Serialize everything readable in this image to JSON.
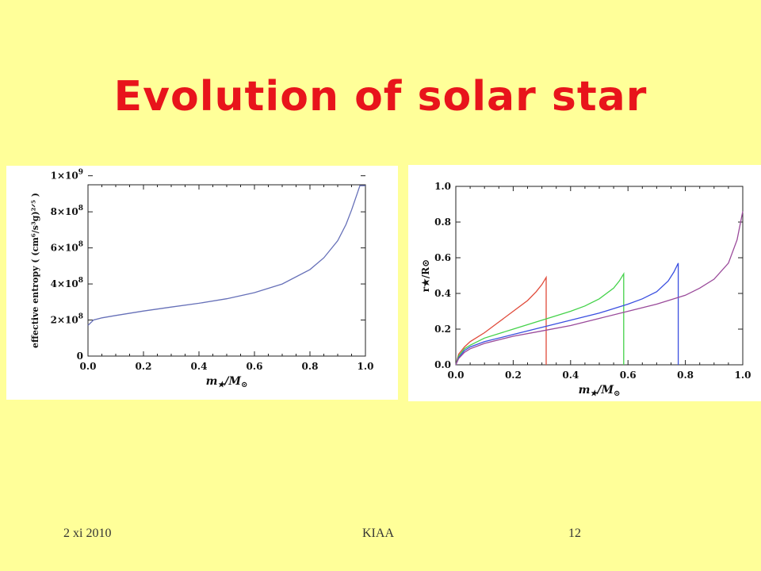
{
  "slide": {
    "title": "Evolution of solar star",
    "footer_left": "2 xi 2010",
    "footer_center": "KIAA",
    "footer_right": "12",
    "background": "#ffff99",
    "title_color": "#e8141b"
  },
  "chart_data": [
    {
      "type": "line",
      "xlabel_main": "m",
      "xlabel_sub": "★",
      "xlabel_rest": "/M",
      "xlabel_end": "⊙",
      "ylabel": "effective entropy ( (cm⁶/s³g)²ᐟ⁵ )",
      "xlim": [
        0.0,
        1.0
      ],
      "ylim": [
        0,
        950000000
      ],
      "x_ticks": [
        "0.0",
        "0.2",
        "0.4",
        "0.6",
        "0.8",
        "1.0"
      ],
      "y_ticks": [
        {
          "value": 0,
          "mant": "0",
          "exp": ""
        },
        {
          "value": 200000000,
          "mant": "2×10",
          "exp": "8"
        },
        {
          "value": 400000000,
          "mant": "4×10",
          "exp": "8"
        },
        {
          "value": 600000000,
          "mant": "6×10",
          "exp": "8"
        },
        {
          "value": 800000000,
          "mant": "8×10",
          "exp": "8"
        },
        {
          "value": 1000000000,
          "mant": "1×10",
          "exp": "9"
        }
      ],
      "series": [
        {
          "color": "#6670b8",
          "x": [
            0.0,
            0.02,
            0.05,
            0.1,
            0.2,
            0.3,
            0.4,
            0.5,
            0.6,
            0.7,
            0.8,
            0.85,
            0.9,
            0.93,
            0.95,
            0.97,
            0.98,
            1.0
          ],
          "y": [
            170000000,
            200000000,
            212000000,
            225000000,
            250000000,
            272000000,
            293000000,
            318000000,
            352000000,
            400000000,
            480000000,
            545000000,
            640000000,
            730000000,
            810000000,
            900000000,
            945000000,
            945000000
          ]
        }
      ]
    },
    {
      "type": "line",
      "xlabel_main": "m",
      "xlabel_sub": "★",
      "xlabel_rest": "/M",
      "xlabel_end": "⊙",
      "ylabel": "r★/R⊙",
      "xlim": [
        0.0,
        1.0
      ],
      "ylim": [
        0.0,
        1.0
      ],
      "x_ticks": [
        "0.0",
        "0.2",
        "0.4",
        "0.6",
        "0.8",
        "1.0"
      ],
      "y_ticks": [
        "0.0",
        "0.2",
        "0.4",
        "0.6",
        "0.8",
        "1.0"
      ],
      "series": [
        {
          "color": "#e04a3a",
          "x": [
            0.0,
            0.01,
            0.03,
            0.05,
            0.1,
            0.15,
            0.2,
            0.25,
            0.28,
            0.3,
            0.315,
            0.315
          ],
          "y": [
            0.0,
            0.06,
            0.1,
            0.13,
            0.18,
            0.24,
            0.3,
            0.36,
            0.41,
            0.45,
            0.49,
            0.0
          ]
        },
        {
          "color": "#44d24a",
          "x": [
            0.0,
            0.01,
            0.03,
            0.05,
            0.1,
            0.2,
            0.3,
            0.4,
            0.45,
            0.5,
            0.55,
            0.57,
            0.585,
            0.585
          ],
          "y": [
            0.0,
            0.05,
            0.09,
            0.11,
            0.15,
            0.2,
            0.25,
            0.3,
            0.33,
            0.37,
            0.43,
            0.47,
            0.51,
            0.0
          ]
        },
        {
          "color": "#3a4fe0",
          "x": [
            0.0,
            0.01,
            0.03,
            0.05,
            0.1,
            0.2,
            0.3,
            0.4,
            0.5,
            0.6,
            0.65,
            0.7,
            0.74,
            0.76,
            0.775,
            0.775
          ],
          "y": [
            0.0,
            0.04,
            0.08,
            0.1,
            0.13,
            0.17,
            0.21,
            0.25,
            0.29,
            0.34,
            0.37,
            0.41,
            0.47,
            0.52,
            0.57,
            0.0
          ]
        },
        {
          "color": "#9a4a9a",
          "x": [
            0.0,
            0.01,
            0.03,
            0.05,
            0.1,
            0.2,
            0.3,
            0.4,
            0.5,
            0.6,
            0.7,
            0.8,
            0.85,
            0.9,
            0.95,
            0.98,
            1.0
          ],
          "y": [
            0.0,
            0.035,
            0.07,
            0.09,
            0.12,
            0.16,
            0.19,
            0.22,
            0.26,
            0.3,
            0.34,
            0.39,
            0.43,
            0.48,
            0.57,
            0.7,
            0.86
          ]
        }
      ]
    }
  ]
}
